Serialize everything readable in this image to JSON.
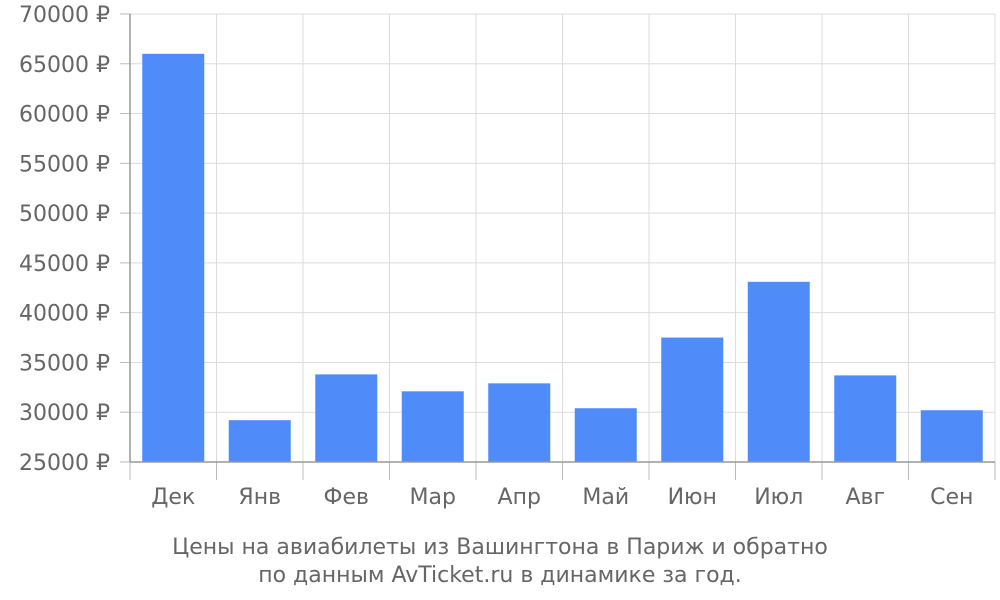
{
  "chart_data": {
    "type": "bar",
    "categories": [
      "Дек",
      "Янв",
      "Фев",
      "Мар",
      "Апр",
      "Май",
      "Июн",
      "Июл",
      "Авг",
      "Сен"
    ],
    "values": [
      66000,
      29200,
      33800,
      32100,
      32900,
      30400,
      37500,
      43100,
      33700,
      30200
    ],
    "ylim": [
      25000,
      70000
    ],
    "yticks": [
      25000,
      30000,
      35000,
      40000,
      45000,
      50000,
      55000,
      60000,
      65000,
      70000
    ],
    "ytick_labels": [
      "25000 ₽",
      "30000 ₽",
      "35000 ₽",
      "40000 ₽",
      "45000 ₽",
      "50000 ₽",
      "55000 ₽",
      "60000 ₽",
      "65000 ₽",
      "70000 ₽"
    ],
    "grid": true,
    "bar_color": "#4f8bf9",
    "caption": [
      "Цены на авиабилеты из Вашингтона в Париж и обратно",
      "по данным AvTicket.ru в динамике за год."
    ]
  }
}
